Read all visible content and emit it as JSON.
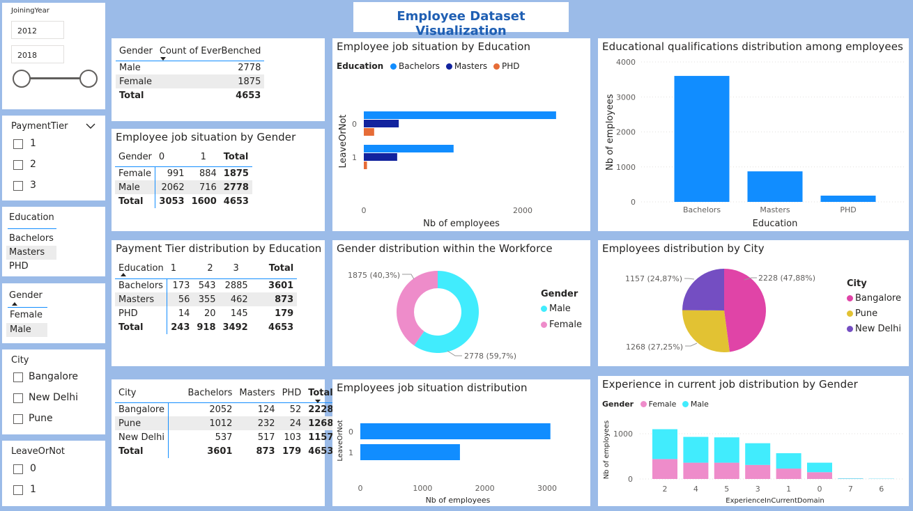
{
  "title": "Employee Dataset Visualization",
  "slicers": {
    "joining_year": {
      "label": "JoiningYear",
      "from": "2012",
      "to": "2018"
    },
    "payment_tier": {
      "label": "PaymentTier",
      "options": [
        "1",
        "2",
        "3"
      ]
    },
    "education": {
      "label": "Education",
      "options": [
        "Bachelors",
        "Masters",
        "PHD"
      ]
    },
    "gender": {
      "label": "Gender",
      "options": [
        "Female",
        "Male"
      ]
    },
    "city": {
      "label": "City",
      "options": [
        "Bangalore",
        "New Delhi",
        "Pune"
      ]
    },
    "leave": {
      "label": "LeaveOrNot",
      "options": [
        "0",
        "1"
      ]
    }
  },
  "benched_table": {
    "headers": [
      "Gender",
      "Count of EverBenched"
    ],
    "rows": [
      [
        "Male",
        "2778"
      ],
      [
        "Female",
        "1875"
      ]
    ],
    "total": [
      "Total",
      "4653"
    ]
  },
  "gender_job_table": {
    "title": "Employee job situation by Gender",
    "headers": [
      "Gender",
      "0",
      "1",
      "Total"
    ],
    "rows": [
      [
        "Female",
        "991",
        "884",
        "1875"
      ],
      [
        "Male",
        "2062",
        "716",
        "2778"
      ]
    ],
    "total": [
      "Total",
      "3053",
      "1600",
      "4653"
    ]
  },
  "tier_table": {
    "title": "Payment Tier distribution by Education",
    "headers": [
      "Education",
      "1",
      "2",
      "3",
      "Total"
    ],
    "rows": [
      [
        "Bachelors",
        "173",
        "543",
        "2885",
        "3601"
      ],
      [
        "Masters",
        "56",
        "355",
        "462",
        "873"
      ],
      [
        "PHD",
        "14",
        "20",
        "145",
        "179"
      ]
    ],
    "total": [
      "Total",
      "243",
      "918",
      "3492",
      "4653"
    ]
  },
  "city_table": {
    "headers": [
      "City",
      "Bachelors",
      "Masters",
      "PHD",
      "Total"
    ],
    "rows": [
      [
        "Bangalore",
        "2052",
        "124",
        "52",
        "2228"
      ],
      [
        "Pune",
        "1012",
        "232",
        "24",
        "1268"
      ],
      [
        "New Delhi",
        "537",
        "517",
        "103",
        "1157"
      ]
    ],
    "total": [
      "Total",
      "3601",
      "873",
      "179",
      "4653"
    ]
  },
  "colors": {
    "blue": "#118dff",
    "navy": "#12239e",
    "orange": "#e66c37",
    "cyan": "#41ecfd",
    "pink": "#ee8cca",
    "bangalore": "#e044a7",
    "pune": "#e2c233",
    "new_delhi": "#744ec2"
  },
  "chart_data": [
    {
      "id": "job_by_education",
      "type": "bar",
      "orientation": "horizontal",
      "title": "Employee job situation by Education",
      "legend_title": "Education",
      "categories": [
        "0",
        "1"
      ],
      "series": [
        {
          "name": "Bachelors",
          "values": [
            2420,
            1130
          ]
        },
        {
          "name": "Masters",
          "values": [
            440,
            420
          ]
        },
        {
          "name": "PHD",
          "values": [
            130,
            40
          ]
        }
      ],
      "xlabel": "Nb of employees",
      "ylabel": "LeaveOrNot",
      "xticks": [
        "0",
        "2000"
      ],
      "xlim": [
        0,
        2500
      ]
    },
    {
      "id": "education_distribution",
      "type": "bar",
      "title": "Educational qualifications distribution among employees",
      "categories": [
        "Bachelors",
        "Masters",
        "PHD"
      ],
      "values": [
        3601,
        873,
        179
      ],
      "xlabel": "Education",
      "ylabel": "Nb of employees",
      "yticks": [
        "0",
        "1000",
        "2000",
        "3000",
        "4000"
      ],
      "ylim": [
        0,
        4000
      ]
    },
    {
      "id": "gender_donut",
      "type": "pie",
      "title": "Gender distribution within the Workforce",
      "legend_title": "Gender",
      "labels": [
        "Male",
        "Female"
      ],
      "values": [
        2778,
        1875
      ],
      "data_labels": [
        "2778 (59,7%)",
        "1875 (40,3%)"
      ]
    },
    {
      "id": "city_pie",
      "type": "pie",
      "title": "Employees distribution by City",
      "legend_title": "City",
      "labels": [
        "Bangalore",
        "Pune",
        "New Delhi"
      ],
      "values": [
        2228,
        1268,
        1157
      ],
      "data_labels": [
        "2228 (47,88%)",
        "1268 (27,25%)",
        "1157 (24,87%)"
      ]
    },
    {
      "id": "job_distribution",
      "type": "bar",
      "orientation": "horizontal",
      "title": "Employees job situation distribution",
      "categories": [
        "0",
        "1"
      ],
      "values": [
        3053,
        1600
      ],
      "xlabel": "Nb of employees",
      "ylabel": "LeaveOrNot",
      "xticks": [
        "0",
        "1000",
        "2000",
        "3000"
      ],
      "xlim": [
        0,
        3000
      ]
    },
    {
      "id": "experience_by_gender",
      "type": "bar",
      "stacked": true,
      "title": "Experience in current job distribution by Gender",
      "legend_title": "Gender",
      "categories": [
        "2",
        "4",
        "5",
        "3",
        "1",
        "0",
        "7",
        "6"
      ],
      "series": [
        {
          "name": "Female",
          "values": [
            440,
            360,
            360,
            310,
            230,
            150,
            5,
            3
          ]
        },
        {
          "name": "Male",
          "values": [
            660,
            570,
            560,
            480,
            340,
            210,
            10,
            5
          ]
        }
      ],
      "xlabel": "ExperienceInCurrentDomain",
      "ylabel": "Nb of employees",
      "yticks": [
        "0",
        "1000"
      ],
      "ylim": [
        0,
        1100
      ]
    }
  ]
}
